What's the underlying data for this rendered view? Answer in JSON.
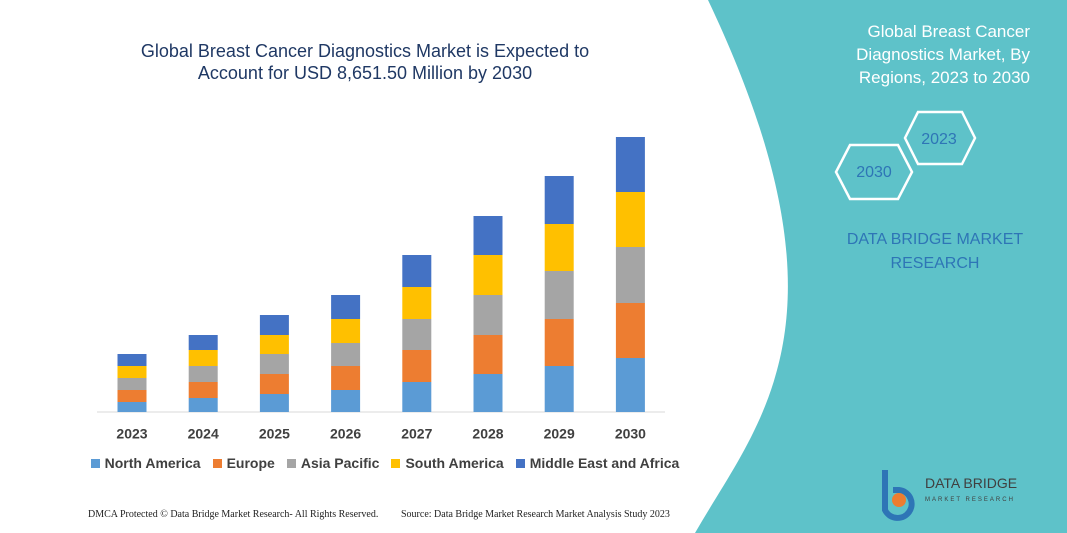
{
  "chart_data": {
    "type": "bar",
    "stacked": true,
    "title": "Global Breast Cancer Diagnostics Market is Expected to Account for USD 8,651.50 Million by 2030",
    "categories": [
      "2023",
      "2024",
      "2025",
      "2026",
      "2027",
      "2028",
      "2029",
      "2030"
    ],
    "series": [
      {
        "name": "North America",
        "color": "#5b9bd5",
        "values": [
          10,
          14,
          18,
          22,
          30,
          38,
          46,
          54
        ]
      },
      {
        "name": "Europe",
        "color": "#ed7d31",
        "values": [
          12,
          16,
          20,
          24,
          32,
          39,
          47,
          55
        ]
      },
      {
        "name": "Asia Pacific",
        "color": "#a5a5a5",
        "values": [
          12,
          16,
          20,
          23,
          31,
          40,
          48,
          56
        ]
      },
      {
        "name": "South America",
        "color": "#ffc000",
        "values": [
          12,
          16,
          19,
          24,
          32,
          40,
          47,
          55
        ]
      },
      {
        "name": "Middle East and Africa",
        "color": "#4472c4",
        "values": [
          12,
          15,
          20,
          24,
          32,
          39,
          48,
          55
        ]
      }
    ],
    "legend": "bottom"
  },
  "panel": {
    "heading": "Global Breast Cancer Diagnostics Market, By Regions, 2023 to 2030",
    "hexagons": [
      "2023",
      "2030"
    ],
    "brand": "DATA BRIDGE MARKET RESEARCH"
  },
  "logo": {
    "name": "DATA BRIDGE",
    "tagline": "MARKET RESEARCH"
  },
  "footer": {
    "left": "DMCA Protected © Data Bridge Market Research- All Rights Reserved.",
    "right": "Source: Data Bridge Market Research Market Analysis Study 2023"
  }
}
